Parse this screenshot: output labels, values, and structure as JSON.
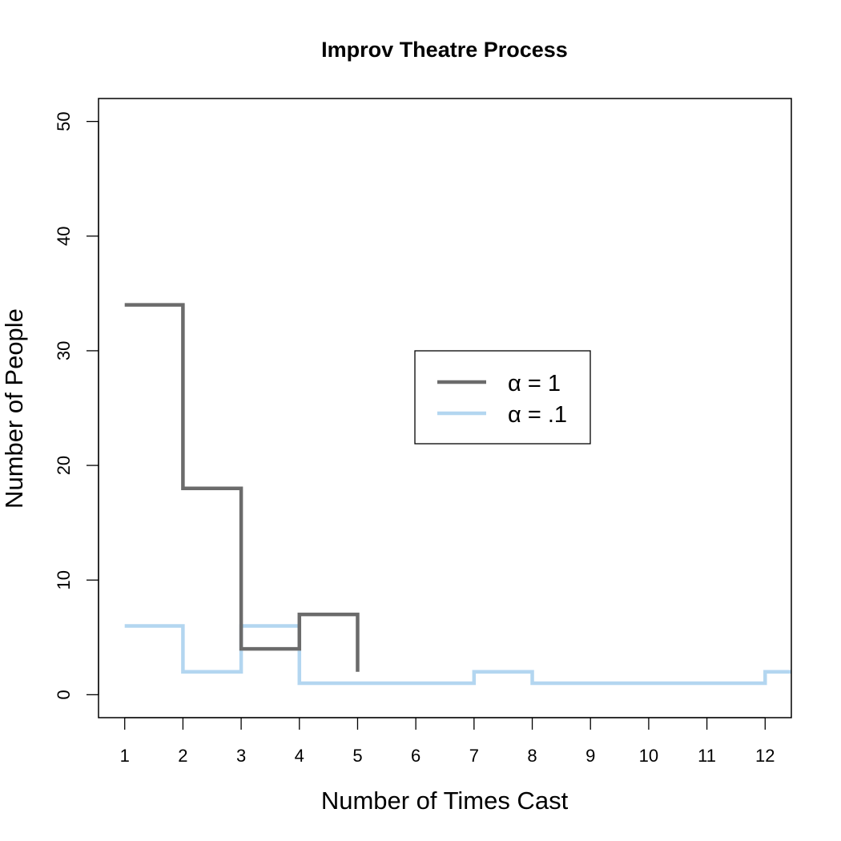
{
  "chart_data": {
    "type": "line",
    "step": true,
    "title": "Improv Theatre Process",
    "xlabel": "Number of Times Cast",
    "ylabel": "Number of People",
    "xlim": [
      0.55,
      12.45
    ],
    "ylim": [
      -2,
      52
    ],
    "x_ticks": [
      "1",
      "2",
      "3",
      "4",
      "5",
      "6",
      "7",
      "8",
      "9",
      "10",
      "11",
      "12"
    ],
    "y_ticks": [
      "0",
      "10",
      "20",
      "30",
      "40",
      "50"
    ],
    "grid": false,
    "legend_position": "center",
    "series": [
      {
        "name": "α = 1",
        "color": "#6b6b6b",
        "x": [
          1,
          2,
          3,
          4,
          5
        ],
        "y": [
          34,
          18,
          4,
          7,
          2
        ]
      },
      {
        "name": "α = .1",
        "color": "#b3d6f0",
        "x": [
          1,
          2,
          3,
          4,
          5,
          6,
          7,
          8,
          9,
          10,
          11,
          12,
          12.45
        ],
        "y": [
          6,
          2,
          6,
          1,
          1,
          1,
          2,
          1,
          1,
          1,
          1,
          2,
          2
        ]
      }
    ]
  }
}
